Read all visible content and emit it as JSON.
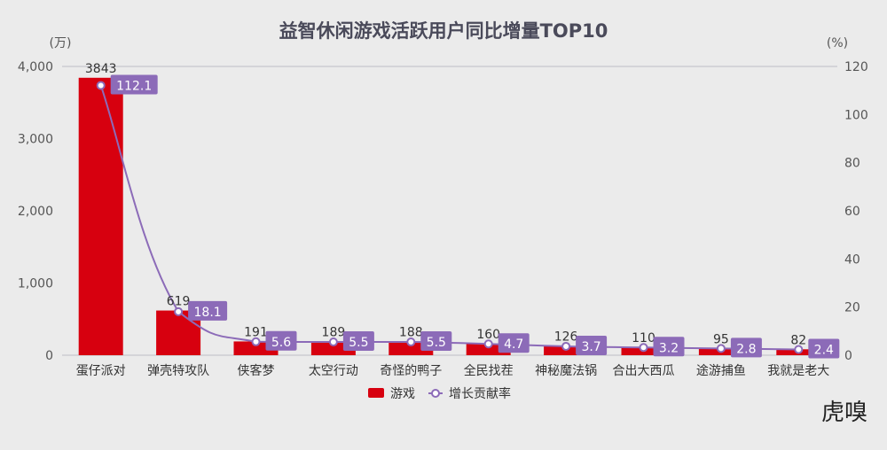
{
  "chart_data": {
    "type": "bar",
    "title": "益智休闲游戏活跃用户同比增量TOP10",
    "left_unit": "(万)",
    "right_unit": "(%)",
    "categories": [
      "蛋仔派对",
      "弹壳特攻队",
      "侠客梦",
      "太空行动",
      "奇怪的鸭子",
      "全民找茬",
      "神秘魔法锅",
      "合出大西瓜",
      "途游捕鱼",
      "我就是老大"
    ],
    "series": [
      {
        "name": "游戏",
        "type": "bar",
        "axis": "left",
        "color": "#d7000f",
        "values": [
          3843,
          619,
          191,
          189,
          188,
          160,
          126,
          110,
          95,
          82
        ]
      },
      {
        "name": "增长贡献率",
        "type": "line",
        "axis": "right",
        "color": "#8c6bb8",
        "values": [
          112.1,
          18.1,
          5.6,
          5.5,
          5.5,
          4.7,
          3.7,
          3.2,
          2.8,
          2.4
        ]
      }
    ],
    "left_axis": {
      "range": [
        0,
        4000
      ],
      "ticks": [
        "0",
        "1,000",
        "2,000",
        "3,000",
        "4,000"
      ]
    },
    "right_axis": {
      "range": [
        0,
        120
      ],
      "ticks": [
        "0",
        "20",
        "40",
        "60",
        "80",
        "100",
        "120"
      ]
    },
    "legend_position": "bottom",
    "grid": false
  },
  "watermark": "虎嗅"
}
